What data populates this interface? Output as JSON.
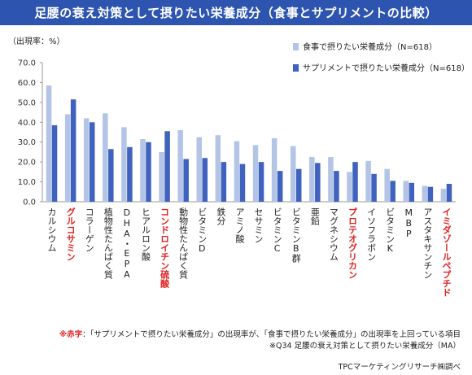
{
  "title": "足腰の衰え対策として摂りたい栄養成分（食事とサプリメントの比較）",
  "unit_label": "（出現率：%）",
  "footnotes": {
    "note_mark": "※",
    "note_red": "赤字",
    "note_rest": "：「サプリメントで摂りたい栄養成分」の出現率が、「食事で摂りたい栄養成分」の出現率を上回っている項目",
    "question": "※Q34 足腰の衰え対策として摂りたい栄養成分（MA）",
    "source": "TPCマーケティングリサーチ㈱調べ"
  },
  "colors": {
    "title_bg": "#2d55b0",
    "food": "#b3c4e6",
    "supplement": "#3e62bd",
    "highlight_label": "#e02020"
  },
  "chart_data": {
    "type": "bar",
    "ylim": [
      0,
      70
    ],
    "yticks": [
      "0.0",
      "10.0",
      "20.0",
      "30.0",
      "40.0",
      "50.0",
      "60.0",
      "70.0"
    ],
    "legend_position": "top-right",
    "grid": false,
    "categories": [
      "カルシウム",
      "グルコサミン",
      "コラーゲン",
      "植物性たんぱく質",
      "DHA・EPA",
      "ヒアルロン酸",
      "コンドロイチン硫酸",
      "動物性たんぱく質",
      "ビタミンD",
      "鉄分",
      "アミノ酸",
      "セサミン",
      "ビタミンC",
      "ビタミンB群",
      "亜鉛",
      "マグネシウム",
      "プロテオグリカン",
      "イソフラボン",
      "ビタミンK",
      "MBP",
      "アスタキサンチン",
      "イミダゾールペプチド"
    ],
    "highlighted": [
      false,
      true,
      false,
      false,
      false,
      false,
      true,
      false,
      false,
      false,
      false,
      false,
      false,
      false,
      false,
      false,
      true,
      false,
      false,
      false,
      false,
      true
    ],
    "series": [
      {
        "name": "食事で摂りたい栄養成分（N=618）",
        "values": [
          58.5,
          44.0,
          42.0,
          44.5,
          37.5,
          31.5,
          25.0,
          36.0,
          32.5,
          33.5,
          30.5,
          28.5,
          32.0,
          28.0,
          22.5,
          22.5,
          15.0,
          20.5,
          16.5,
          10.5,
          8.0,
          6.5
        ]
      },
      {
        "name": "サプリメントで摂りたい栄養成分（N=618）",
        "values": [
          38.5,
          51.5,
          40.0,
          26.5,
          27.5,
          30.0,
          35.5,
          21.5,
          22.0,
          20.0,
          19.0,
          20.0,
          15.5,
          16.5,
          19.5,
          15.5,
          20.0,
          14.0,
          10.5,
          9.5,
          7.5,
          9.0
        ]
      }
    ]
  }
}
